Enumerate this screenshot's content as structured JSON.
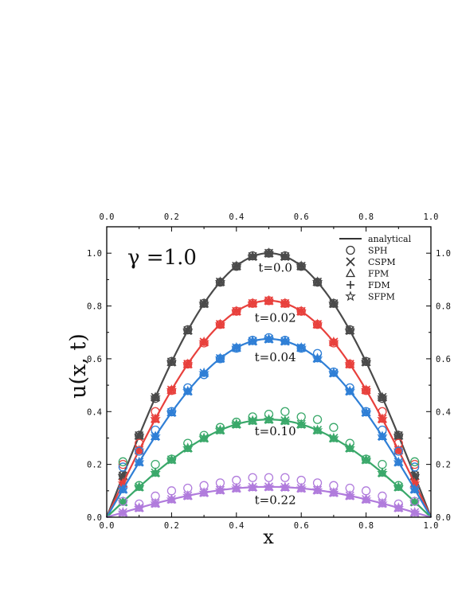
{
  "chart_data": {
    "type": "line",
    "title": "",
    "param_label": "γ =1.0",
    "xlabel": "x",
    "ylabel": "u(x, t)",
    "xlim": [
      0.0,
      1.0
    ],
    "ylim": [
      0.0,
      1.1
    ],
    "xticks": [
      "0.0",
      "0.2",
      "0.4",
      "0.6",
      "0.8",
      "1.0"
    ],
    "yticks": [
      "0.0",
      "0.2",
      "0.4",
      "0.6",
      "0.8",
      "1.0"
    ],
    "xtick_values": [
      0,
      0.2,
      0.4,
      0.6,
      0.8,
      1.0
    ],
    "ytick_values": [
      0,
      0.2,
      0.4,
      0.6,
      0.8,
      1.0
    ],
    "top_axis_ticks": true,
    "right_axis_ticks": true,
    "grid": false,
    "legend_position": "top-right",
    "legend": [
      {
        "label": "analytical",
        "marker": "line"
      },
      {
        "label": "SPH",
        "marker": "circle"
      },
      {
        "label": "CSPM",
        "marker": "x"
      },
      {
        "label": "FPM",
        "marker": "triangle"
      },
      {
        "label": "FDM",
        "marker": "plus"
      },
      {
        "label": "SFPM",
        "marker": "star"
      }
    ],
    "curves": [
      {
        "label": "t=0.0",
        "t": 0.0,
        "color": "#4a4a4a",
        "amplitude": 1.0,
        "label_at": [
          0.52,
          0.93
        ],
        "sph_values": [
          0.16,
          0.31,
          0.45,
          0.59,
          0.71,
          0.81,
          0.89,
          0.95,
          0.99,
          1.0,
          0.99,
          0.95,
          0.89,
          0.81,
          0.71,
          0.59,
          0.45,
          0.31,
          0.16
        ]
      },
      {
        "label": "t=0.02",
        "t": 0.02,
        "color": "#e8403c",
        "amplitude": 0.82,
        "label_at": [
          0.52,
          0.74
        ],
        "sph_values": [
          0.2,
          0.28,
          0.4,
          0.48,
          0.58,
          0.66,
          0.73,
          0.78,
          0.81,
          0.82,
          0.81,
          0.78,
          0.73,
          0.66,
          0.58,
          0.48,
          0.4,
          0.28,
          0.2
        ]
      },
      {
        "label": "t=0.04",
        "t": 0.04,
        "color": "#2f7fd6",
        "amplitude": 0.675,
        "label_at": [
          0.52,
          0.59
        ],
        "sph_values": [
          0.19,
          0.25,
          0.33,
          0.4,
          0.49,
          0.54,
          0.6,
          0.64,
          0.67,
          0.68,
          0.67,
          0.64,
          0.62,
          0.55,
          0.49,
          0.4,
          0.33,
          0.25,
          0.19
        ]
      },
      {
        "label": "t=0.10",
        "t": 0.1,
        "color": "#3aa86a",
        "amplitude": 0.37,
        "label_at": [
          0.52,
          0.31
        ],
        "sph_values": [
          0.21,
          0.12,
          0.2,
          0.22,
          0.28,
          0.31,
          0.34,
          0.36,
          0.38,
          0.39,
          0.4,
          0.38,
          0.37,
          0.34,
          0.28,
          0.22,
          0.2,
          0.12,
          0.21
        ]
      },
      {
        "label": "t=0.22",
        "t": 0.22,
        "color": "#b07bdc",
        "amplitude": 0.115,
        "label_at": [
          0.52,
          0.05
        ],
        "sph_values": [
          0.06,
          0.05,
          0.08,
          0.1,
          0.11,
          0.12,
          0.13,
          0.14,
          0.15,
          0.15,
          0.15,
          0.14,
          0.13,
          0.12,
          0.11,
          0.1,
          0.08,
          0.05,
          0.06
        ]
      }
    ]
  }
}
